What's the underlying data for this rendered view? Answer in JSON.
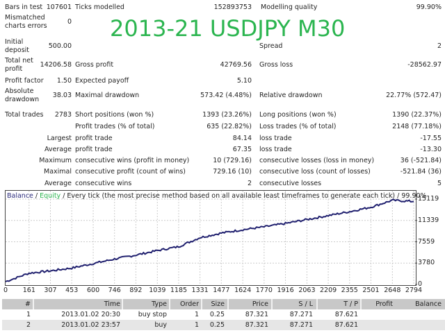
{
  "title_overlay": "2013-21 USDJPY M30",
  "stats": {
    "bars_in_test": {
      "label": "Bars in test",
      "value": "107601"
    },
    "ticks_modelled": {
      "label": "Ticks modelled",
      "value": "152893753"
    },
    "modelling_quality": {
      "label": "Modelling quality",
      "value": "99.90%"
    },
    "mismatched_errors": {
      "label1": "Mismatched",
      "label2": "charts errors",
      "value": "0"
    },
    "initial_deposit": {
      "label1": "Initial",
      "label2": "deposit",
      "value": "500.00"
    },
    "spread": {
      "label": "Spread",
      "value": "2"
    },
    "total_net_profit": {
      "label1": "Total net",
      "label2": "profit",
      "value": "14206.58"
    },
    "gross_profit": {
      "label": "Gross profit",
      "value": "42769.56"
    },
    "gross_loss": {
      "label": "Gross loss",
      "value": "-28562.97"
    },
    "profit_factor": {
      "label": "Profit factor",
      "value": "1.50"
    },
    "expected_payoff": {
      "label": "Expected payoff",
      "value": "5.10"
    },
    "absolute_drawdown": {
      "label1": "Absolute",
      "label2": "drawdown",
      "value": "38.03"
    },
    "maximal_drawdown": {
      "label": "Maximal drawdown",
      "value": "573.42 (4.48%)"
    },
    "relative_drawdown": {
      "label": "Relative drawdown",
      "value": "22.77% (572.47)"
    },
    "total_trades": {
      "label": "Total trades",
      "value": "2783"
    },
    "short_positions": {
      "label": "Short positions (won %)",
      "value": "1393 (23.26%)"
    },
    "long_positions": {
      "label": "Long positions (won %)",
      "value": "1390 (22.37%)"
    },
    "profit_trades": {
      "label": "Profit trades (% of total)",
      "value": "635 (22.82%)"
    },
    "loss_trades": {
      "label": "Loss trades (% of total)",
      "value": "2148 (77.18%)"
    },
    "largest": {
      "prefix": "Largest",
      "profit_label": "profit trade",
      "profit_value": "84.14",
      "loss_label": "loss trade",
      "loss_value": "-17.55"
    },
    "average": {
      "prefix": "Average",
      "profit_label": "profit trade",
      "profit_value": "67.35",
      "loss_label": "loss trade",
      "loss_value": "-13.30"
    },
    "maximum": {
      "prefix": "Maximum",
      "profit_label": "consecutive wins (profit in money)",
      "profit_value": "10 (729.16)",
      "loss_label": "consecutive losses (loss in money)",
      "loss_value": "36 (-521.84)"
    },
    "maximal": {
      "prefix": "Maximal",
      "profit_label": "consecutive profit (count of wins)",
      "profit_value": "729.16 (10)",
      "loss_label": "consecutive loss (count of losses)",
      "loss_value": "-521.84 (36)"
    },
    "average_consec": {
      "prefix": "Average",
      "profit_label": "consecutive wins",
      "profit_value": "2",
      "loss_label": "consecutive losses",
      "loss_value": "5"
    }
  },
  "chart": {
    "legend_balance": "Balance",
    "legend_sep1": " / ",
    "legend_equity": "Equity",
    "legend_rest": " / Every tick (the most precise method based on all available least timeframes to generate each tick) / 99.90%",
    "colors": {
      "balance": "#1f1f6e",
      "equity": "#2bb54f",
      "grid": "#cccccc"
    }
  },
  "chart_data": {
    "type": "line",
    "title": "Balance / Equity / Every tick (the most precise method based on all available least timeframes to generate each tick) / 99.90%",
    "xlabel": "",
    "ylabel": "",
    "x_ticks": [
      "0",
      "161",
      "307",
      "453",
      "600",
      "746",
      "892",
      "1039",
      "1185",
      "1331",
      "1477",
      "1624",
      "1770",
      "1916",
      "2063",
      "2209",
      "2355",
      "2501",
      "2648",
      "2794"
    ],
    "y_ticks": [
      "15119",
      "11339",
      "7559",
      "3780",
      "0"
    ],
    "ylim": [
      0,
      15119
    ],
    "xlim": [
      0,
      2794
    ],
    "grid": true,
    "series": [
      {
        "name": "Balance",
        "x": [
          0,
          161,
          307,
          453,
          600,
          746,
          892,
          1039,
          1185,
          1331,
          1477,
          1624,
          1770,
          1916,
          2063,
          2209,
          2355,
          2501,
          2648,
          2794
        ],
        "values": [
          500,
          2000,
          2400,
          2900,
          3700,
          4500,
          5200,
          6000,
          6700,
          8300,
          9100,
          9700,
          10200,
          10800,
          11500,
          12200,
          12900,
          13700,
          14900,
          14700
        ]
      }
    ]
  },
  "table": {
    "headers": [
      "#",
      "Time",
      "Type",
      "Order",
      "Size",
      "Price",
      "S / L",
      "T / P",
      "Profit",
      "Balance"
    ],
    "rows": [
      [
        "1",
        "2013.01.02 20:30",
        "buy stop",
        "1",
        "0.25",
        "87.321",
        "87.271",
        "87.621",
        "",
        ""
      ],
      [
        "2",
        "2013.01.02 23:57",
        "buy",
        "1",
        "0.25",
        "87.321",
        "87.271",
        "87.621",
        "",
        ""
      ]
    ]
  }
}
